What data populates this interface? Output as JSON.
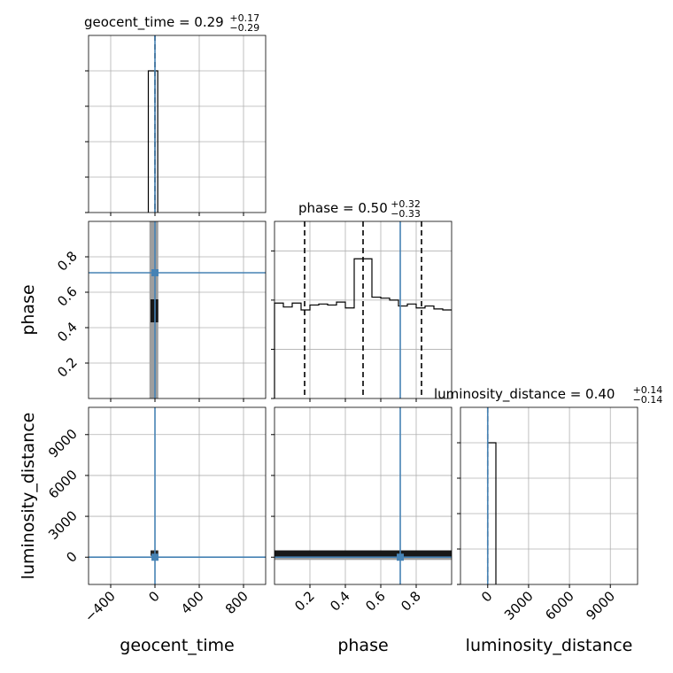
{
  "chart_data": {
    "type": "corner",
    "grid": true,
    "colors": {
      "truth": "#4682b4",
      "hist": "#000000",
      "quantile": "#000000",
      "density_fill": "#9e9e9e",
      "density_core": "#000000",
      "grid": "#b0b0b0"
    },
    "parameters": [
      {
        "key": "geocent_time",
        "label": "geocent_time",
        "title_name": "geocent_time = ",
        "title_median": "0.29",
        "title_plus": "+0.17",
        "title_minus": "−0.29",
        "range": [
          -600,
          1000
        ],
        "ticks": [
          -400,
          0,
          400,
          800
        ],
        "tick_labels": [
          "−400",
          "0",
          "400",
          "800"
        ],
        "truth": 0,
        "median": 0,
        "quantile_lines": [
          0
        ],
        "hist": {
          "bins": [
            [
              -60,
              0,
              1.0
            ],
            [
              0,
              25,
              1.0
            ]
          ],
          "ymax": 1.25
        },
        "hist_ticks": [
          0,
          0.25,
          0.5,
          0.75,
          1.0
        ]
      },
      {
        "key": "phase",
        "label": "phase",
        "title_name": "phase = ",
        "title_median": "0.50",
        "title_plus": "+0.32",
        "title_minus": "−0.33",
        "range": [
          0.0,
          1.0
        ],
        "ticks": [
          0.2,
          0.4,
          0.6,
          0.8
        ],
        "tick_labels": [
          "0.2",
          "0.4",
          "0.6",
          "0.8"
        ],
        "truth": 0.71,
        "median": 0.5,
        "quantile_lines": [
          0.17,
          0.5,
          0.83
        ],
        "hist": {
          "edges": [
            0,
            0.05,
            0.1,
            0.15,
            0.2,
            0.25,
            0.3,
            0.35,
            0.4,
            0.45,
            0.5,
            0.55,
            0.6,
            0.65,
            0.7,
            0.75,
            0.8,
            0.85,
            0.9,
            0.95,
            1.0
          ],
          "counts": [
            0.97,
            0.93,
            0.97,
            0.9,
            0.95,
            0.96,
            0.95,
            0.98,
            0.92,
            1.42,
            1.42,
            1.03,
            1.02,
            1.0,
            0.94,
            0.96,
            0.92,
            0.94,
            0.91,
            0.9
          ],
          "ymax": 1.8
        },
        "hist_ticks": [
          0,
          0.5,
          1.0,
          1.5
        ]
      },
      {
        "key": "luminosity_distance",
        "label": "luminosity_distance",
        "title_name": "luminosity_distance = ",
        "title_median": "0.40",
        "title_plus": "+0.14",
        "title_minus": "−0.14",
        "range": [
          -2000,
          11000
        ],
        "ticks": [
          0,
          3000,
          6000,
          9000
        ],
        "tick_labels": [
          "0",
          "3000",
          "6000",
          "9000"
        ],
        "truth": 0,
        "median": 0,
        "quantile_lines": [
          0
        ],
        "hist": {
          "bins": [
            [
              0,
              600,
              1.0
            ]
          ],
          "ymax": 1.25
        },
        "hist_ticks": [
          0,
          0.25,
          0.5,
          0.75,
          1.0
        ]
      }
    ],
    "pairs": [
      {
        "row": 1,
        "col": 0,
        "core": {
          "x": [
            -40,
            30
          ],
          "y": [
            0.43,
            0.56
          ]
        },
        "band": {
          "x": [
            -50,
            30
          ],
          "y": [
            0.0,
            1.0
          ]
        }
      },
      {
        "row": 2,
        "col": 0,
        "core": {
          "x": [
            -40,
            30
          ],
          "y": [
            100,
            500
          ]
        }
      },
      {
        "row": 2,
        "col": 1,
        "core": {
          "x": [
            0.0,
            1.0
          ],
          "y": [
            40,
            500
          ]
        },
        "band": {
          "x": [
            0.0,
            1.0
          ],
          "y": [
            -200,
            500
          ]
        }
      }
    ]
  }
}
